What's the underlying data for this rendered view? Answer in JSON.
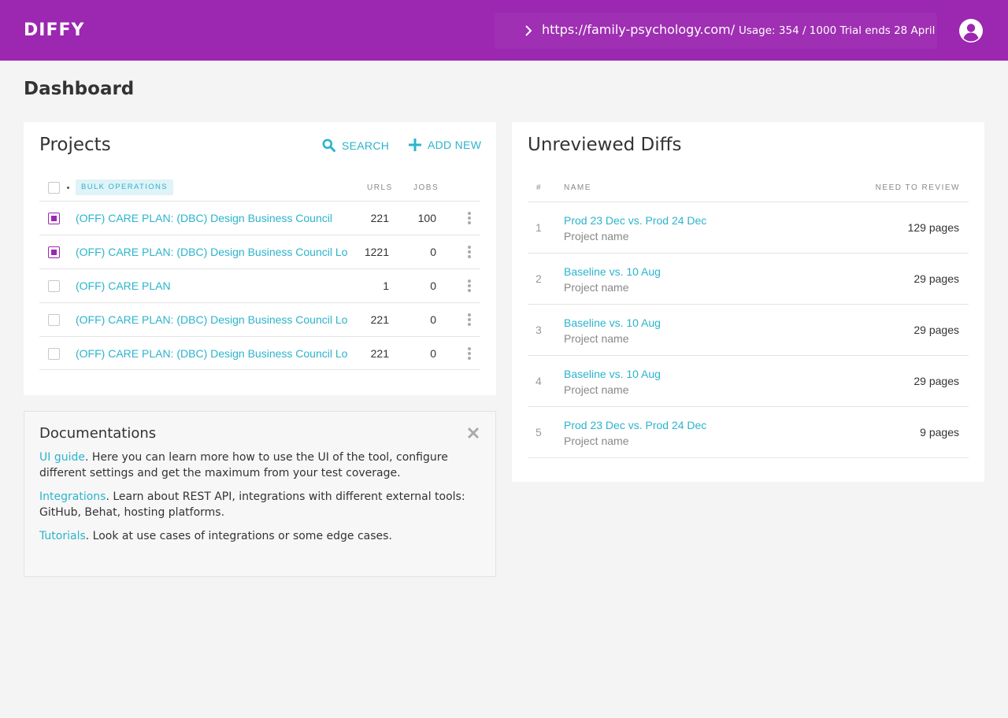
{
  "app": {
    "logo": "DIFFY"
  },
  "header": {
    "url": "https://family-psychology.com/",
    "usage": "Usage: 354 / 1000 Trial ends 28 April"
  },
  "page": {
    "title": "Dashboard"
  },
  "projects": {
    "title": "Projects",
    "search_label": "SEARCH",
    "add_label": "ADD NEW",
    "bulk_label": "BULK OPERATIONS",
    "col_urls": "URLS",
    "col_jobs": "JOBS",
    "rows": [
      {
        "name": "(OFF) CARE PLAN: (DBC) Design Business Council",
        "urls": "221",
        "jobs": "100",
        "checked": true
      },
      {
        "name": "(OFF) CARE PLAN: (DBC) Design Business Council Long",
        "urls": "1221",
        "jobs": "0",
        "checked": true
      },
      {
        "name": "(OFF) CARE PLAN",
        "urls": "1",
        "jobs": "0",
        "checked": false
      },
      {
        "name": "(OFF) CARE PLAN: (DBC) Design Business Council Long",
        "urls": "221",
        "jobs": "0",
        "checked": false
      },
      {
        "name": "(OFF) CARE PLAN: (DBC) Design Business Council Long",
        "urls": "221",
        "jobs": "0",
        "checked": false
      }
    ]
  },
  "diffs": {
    "title": "Unreviewed Diffs",
    "col_num": "#",
    "col_name": "NAME",
    "col_review": "NEED TO REVIEW",
    "rows": [
      {
        "num": "1",
        "name": "Prod 23 Dec vs. Prod 24 Dec",
        "project": "Project name",
        "pages": "129 pages"
      },
      {
        "num": "2",
        "name": "Baseline vs. 10 Aug",
        "project": "Project name",
        "pages": "29 pages"
      },
      {
        "num": "3",
        "name": "Baseline vs. 10 Aug",
        "project": "Project name",
        "pages": "29 pages"
      },
      {
        "num": "4",
        "name": "Baseline vs. 10 Aug",
        "project": "Project name",
        "pages": "29 pages"
      },
      {
        "num": "5",
        "name": "Prod 23 Dec vs. Prod 24 Dec",
        "project": "Project name",
        "pages": "9 pages"
      }
    ]
  },
  "docs": {
    "title": "Documentations",
    "items": [
      {
        "link": "UI guide",
        "text": ". Here you can learn more how to use the UI of the tool, configure different settings and get the maximum from your test coverage."
      },
      {
        "link": "Integrations",
        "text": ". Learn about REST API, integrations with different external tools: GitHub, Behat, hosting platforms."
      },
      {
        "link": "Tutorials",
        "text": ". Look at use cases of integrations or some edge cases."
      }
    ]
  },
  "icons": {
    "url_chevron": "chevron-right-icon",
    "user": "user-circle-icon",
    "search": "search-icon",
    "add": "plus-icon",
    "row_menu": "kebab-menu-icon",
    "close": "close-icon"
  },
  "colors": {
    "brand": "#9c27b0",
    "accent": "#2bb4cc"
  }
}
